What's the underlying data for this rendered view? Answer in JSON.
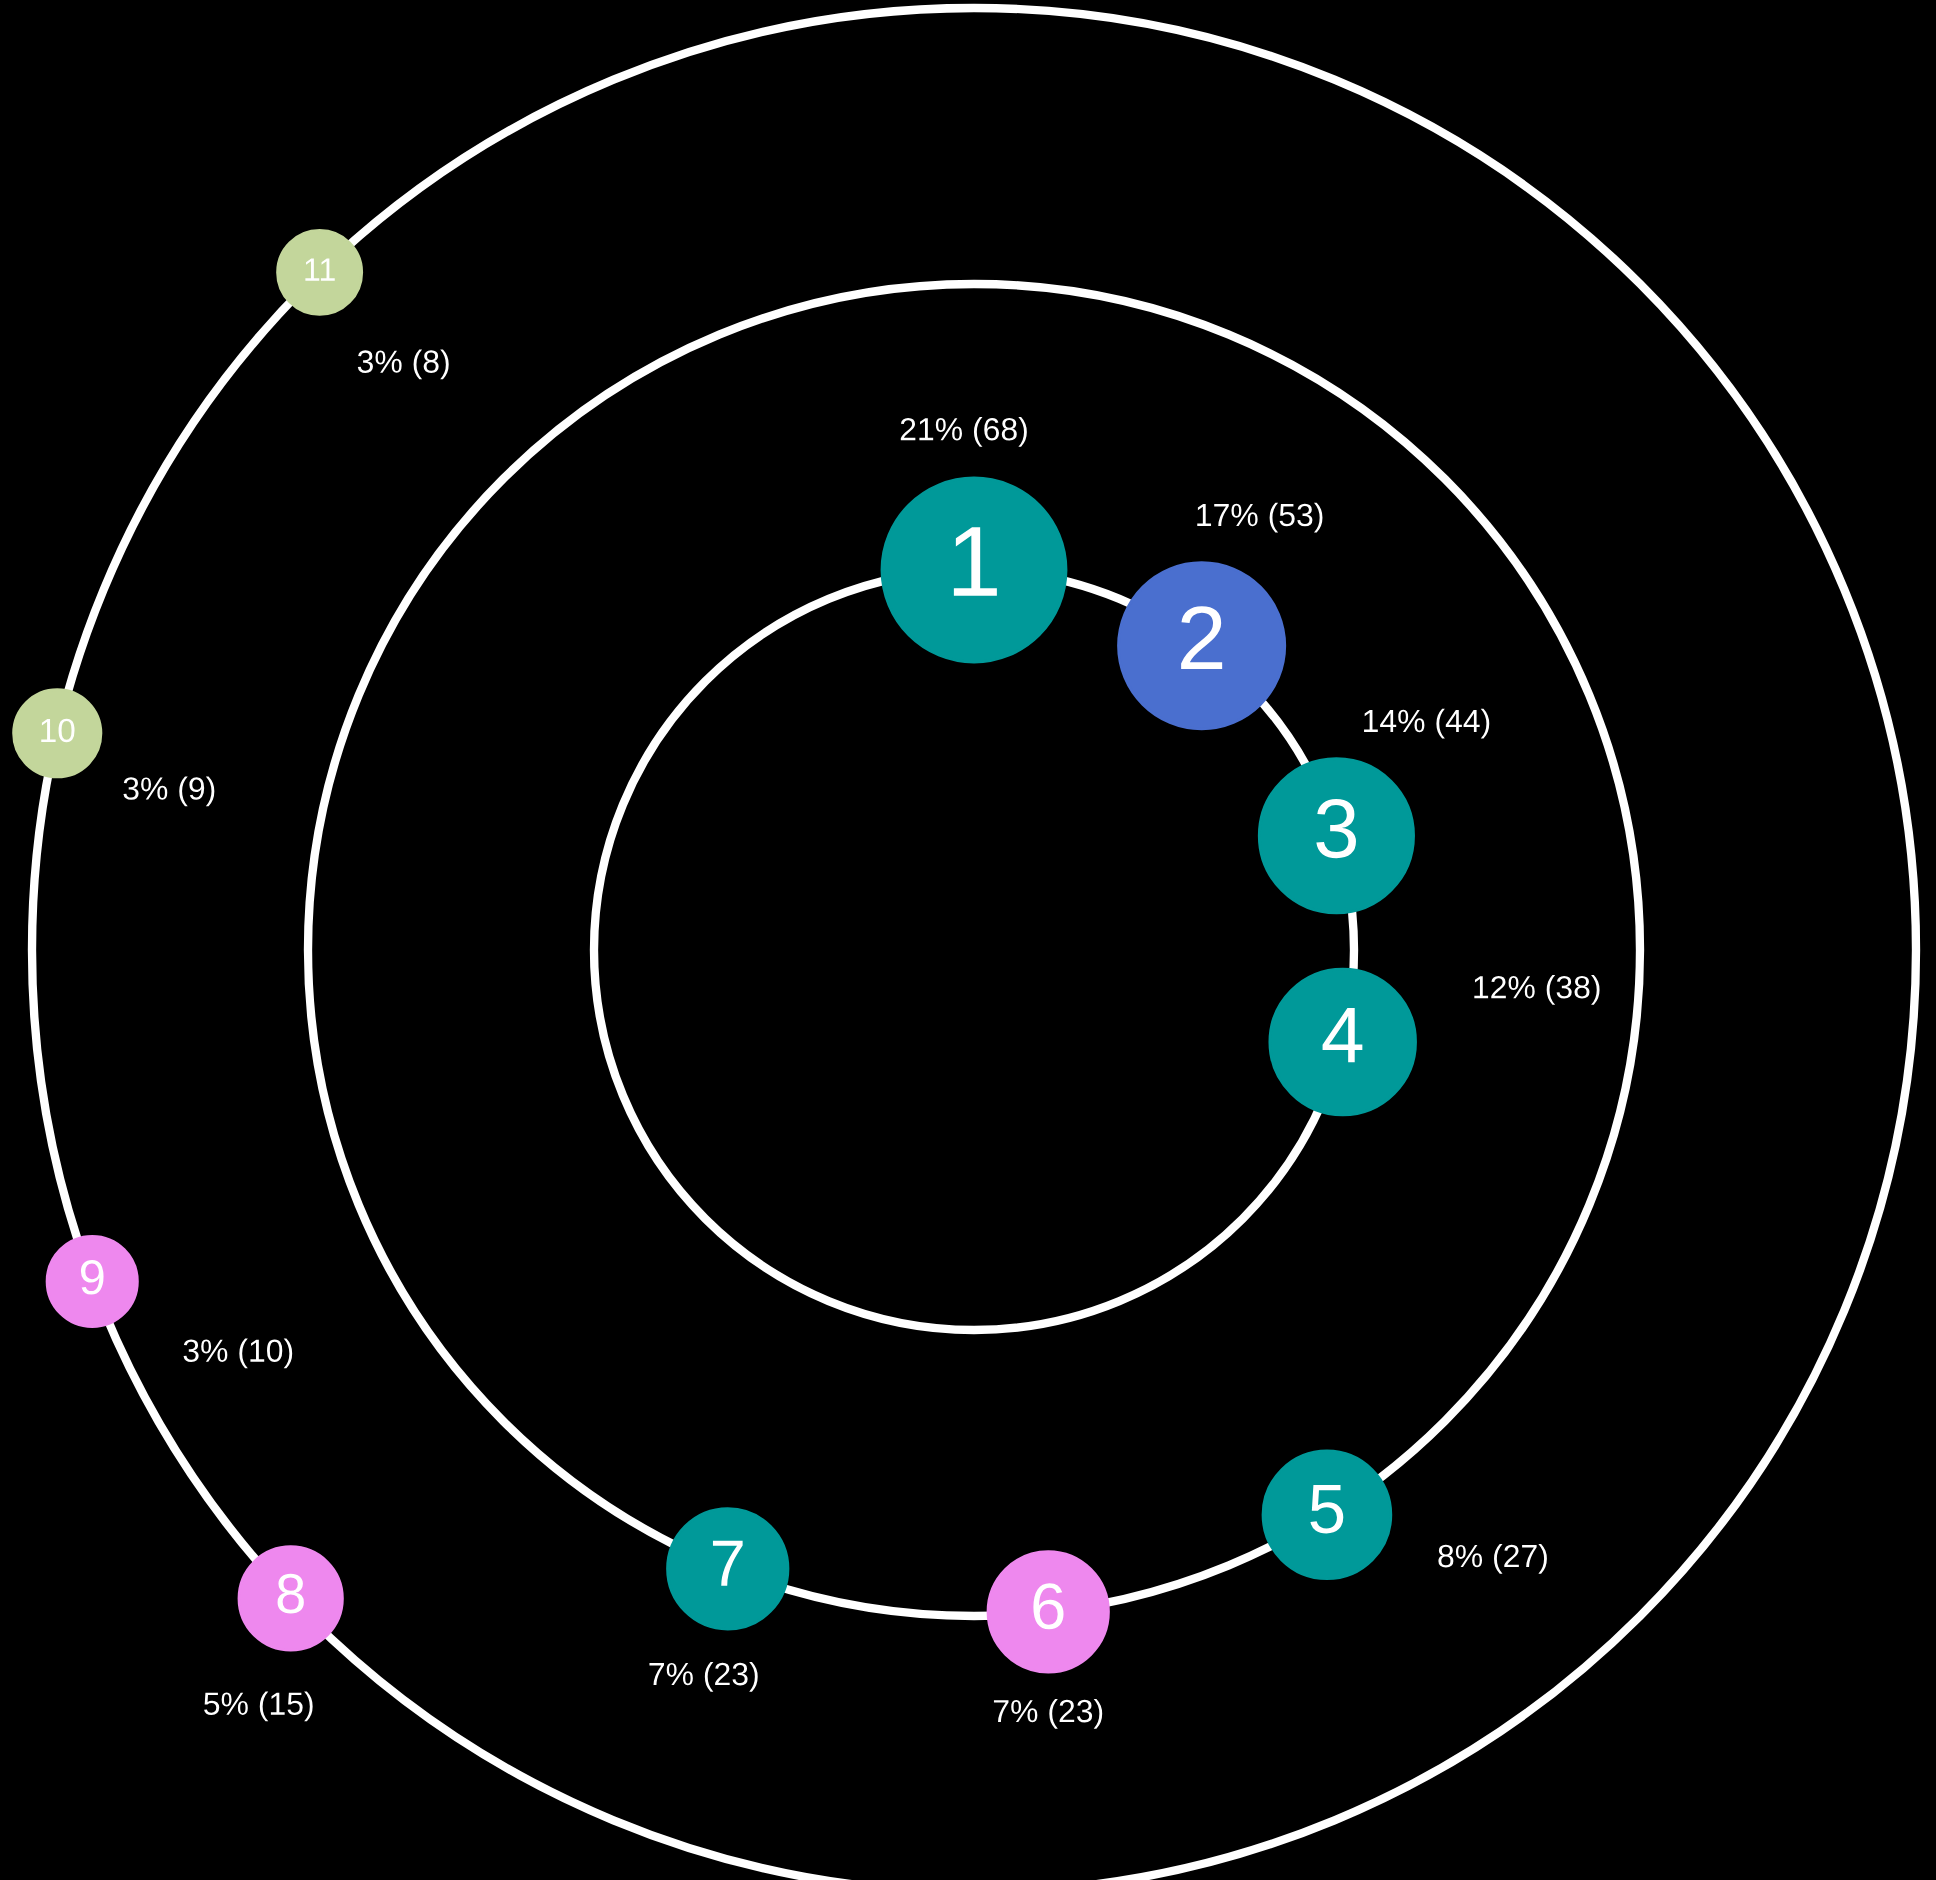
{
  "chart_data": {
    "type": "other",
    "categories": [
      "1",
      "2",
      "3",
      "4",
      "5",
      "6",
      "7",
      "8",
      "9",
      "10",
      "11"
    ],
    "series": [
      {
        "values": [
          68,
          53,
          44,
          38,
          null,
          null,
          null,
          null,
          null,
          null,
          null
        ],
        "colors": [
          "#009999",
          "#4a6fcf",
          "#009999",
          "#009999",
          null,
          null,
          null,
          null,
          null,
          null,
          null
        ],
        "value_labels": [
          "21% (68)",
          "17% (53)",
          "14% (44)",
          "12% (38)",
          null,
          null,
          null,
          null,
          null,
          null,
          null
        ]
      },
      {
        "values": [
          null,
          null,
          null,
          null,
          27,
          23,
          23,
          null,
          null,
          null,
          null
        ],
        "colors": [
          null,
          null,
          null,
          null,
          "#009999",
          "#ee88ee",
          "#009999",
          null,
          null,
          null,
          null
        ],
        "value_labels": [
          null,
          null,
          null,
          null,
          "8% (27)",
          "7% (23)",
          "7% (23)",
          null,
          null,
          null,
          null
        ]
      },
      {
        "values": [
          null,
          null,
          null,
          null,
          null,
          null,
          null,
          15,
          10,
          9,
          8
        ],
        "colors": [
          null,
          null,
          null,
          null,
          null,
          null,
          null,
          "#ee88ee",
          "#ee88ee",
          "#c3d69b",
          "#c3d69b"
        ],
        "value_labels": [
          null,
          null,
          null,
          null,
          null,
          null,
          null,
          "5% (15)",
          "3% (10)",
          "3% (9)",
          "3% (8)"
        ]
      }
    ]
  }
}
